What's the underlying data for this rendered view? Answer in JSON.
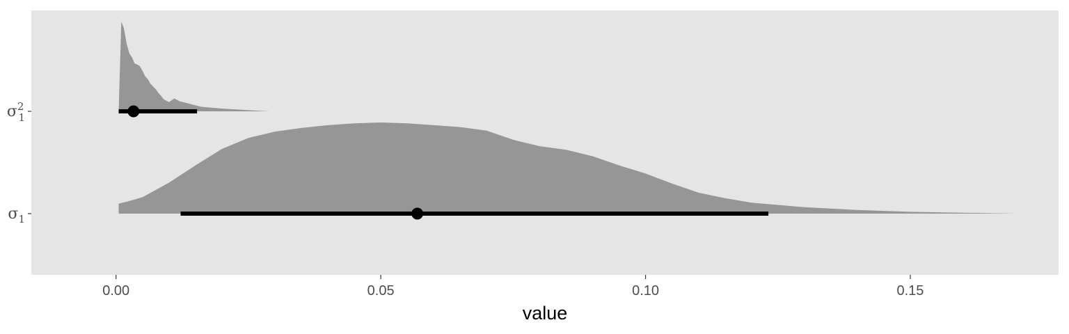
{
  "chart_data": {
    "type": "area",
    "subtype": "half-eye (posterior density with point estimate and interval)",
    "xlabel": "value",
    "ylabel": "",
    "xlim": [
      -0.016,
      0.178
    ],
    "x_ticks": [
      0.0,
      0.05,
      0.1,
      0.15
    ],
    "x_tick_labels": [
      "0.00",
      "0.05",
      "0.10",
      "0.15"
    ],
    "grid": false,
    "panel_background": "#e5e5e5",
    "density_color": "#969696",
    "interval_color": "#000000",
    "categories": [
      {
        "label": {
          "base": "σ",
          "sub": "1",
          "sup": "2"
        },
        "point": 0.0033,
        "interval": [
          0.0005,
          0.0153
        ],
        "density": {
          "x": [
            0.0005,
            0.001,
            0.0015,
            0.002,
            0.0025,
            0.003,
            0.0035,
            0.004,
            0.0045,
            0.005,
            0.0055,
            0.006,
            0.0065,
            0.007,
            0.0075,
            0.008,
            0.0085,
            0.009,
            0.01,
            0.011,
            0.012,
            0.014,
            0.016,
            0.018,
            0.02,
            0.023,
            0.026,
            0.029
          ],
          "y": [
            0.0,
            0.98,
            0.9,
            0.74,
            0.63,
            0.59,
            0.52,
            0.51,
            0.49,
            0.44,
            0.38,
            0.35,
            0.3,
            0.27,
            0.24,
            0.2,
            0.17,
            0.13,
            0.1,
            0.14,
            0.11,
            0.08,
            0.05,
            0.04,
            0.03,
            0.02,
            0.01,
            0.0
          ]
        }
      },
      {
        "label": {
          "base": "σ",
          "sub": "1",
          "sup": ""
        },
        "point": 0.0569,
        "interval": [
          0.0122,
          0.1232
        ],
        "density": {
          "x": [
            0.0005,
            0.002,
            0.005,
            0.01,
            0.015,
            0.02,
            0.025,
            0.03,
            0.035,
            0.04,
            0.045,
            0.05,
            0.055,
            0.06,
            0.065,
            0.07,
            0.075,
            0.08,
            0.085,
            0.09,
            0.095,
            0.1,
            0.105,
            0.11,
            0.115,
            0.12,
            0.13,
            0.14,
            0.15,
            0.16,
            0.17
          ],
          "y": [
            0.11,
            0.13,
            0.18,
            0.34,
            0.53,
            0.71,
            0.83,
            0.9,
            0.94,
            0.97,
            0.99,
            1.0,
            0.99,
            0.97,
            0.95,
            0.91,
            0.81,
            0.74,
            0.7,
            0.63,
            0.53,
            0.44,
            0.33,
            0.23,
            0.17,
            0.12,
            0.07,
            0.04,
            0.02,
            0.01,
            0.0
          ]
        }
      }
    ]
  }
}
